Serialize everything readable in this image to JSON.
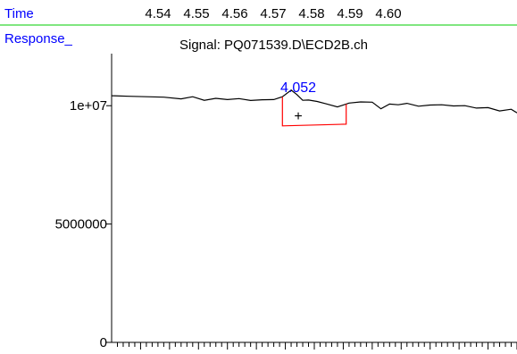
{
  "header": {
    "time_label": "Time",
    "response_label": "Response_",
    "time_ticks": [
      "4.54",
      "4.55",
      "4.56",
      "4.57",
      "4.58",
      "4.59",
      "4.60"
    ]
  },
  "chart_data": {
    "type": "line",
    "title": "Signal: PQ071539.D\\ECD2B.ch",
    "xlabel": "Time",
    "ylabel": "Response_",
    "xlim": [
      4.535,
      4.605
    ],
    "ylim": [
      0,
      12200000
    ],
    "y_ticks": [
      {
        "value": 0,
        "label": "0"
      },
      {
        "value": 5000000,
        "label": "5000000"
      },
      {
        "value": 10000000,
        "label": "1e+07"
      }
    ],
    "series": [
      {
        "x": [
          4.535,
          4.538,
          4.541,
          4.544,
          4.547,
          4.549,
          4.551,
          4.553,
          4.555,
          4.557,
          4.559,
          4.561,
          4.563,
          4.5645,
          4.566,
          4.567,
          4.568,
          4.569,
          4.5705,
          4.572,
          4.574,
          4.576,
          4.578,
          4.58,
          4.5815,
          4.583,
          4.5845,
          4.586,
          4.588,
          4.59,
          4.592,
          4.594,
          4.596,
          4.598,
          4.6,
          4.602,
          4.604,
          4.605
        ],
        "y": [
          10420000,
          10400000,
          10380000,
          10360000,
          10290000,
          10380000,
          10230000,
          10310000,
          10260000,
          10300000,
          10220000,
          10250000,
          10260000,
          10380000,
          10660000,
          10470000,
          10230000,
          10240000,
          10180000,
          10080000,
          9950000,
          10110000,
          10160000,
          10150000,
          9870000,
          10070000,
          10040000,
          10100000,
          9980000,
          10030000,
          10040000,
          9990000,
          10000000,
          9900000,
          9920000,
          9780000,
          9850000,
          9700000
        ]
      }
    ],
    "annotations": {
      "peak_label": "4.052",
      "peak_marker": "+",
      "integration_baseline": {
        "x_start": 4.5645,
        "x_end": 4.5755,
        "y_start": 9150000,
        "y_end": 9220000
      }
    }
  },
  "colors": {
    "signal_line": "#000000",
    "header_text": "#0000ff",
    "header_rule": "#00cc00",
    "baseline": "#ff0000",
    "axis": "#000000"
  }
}
